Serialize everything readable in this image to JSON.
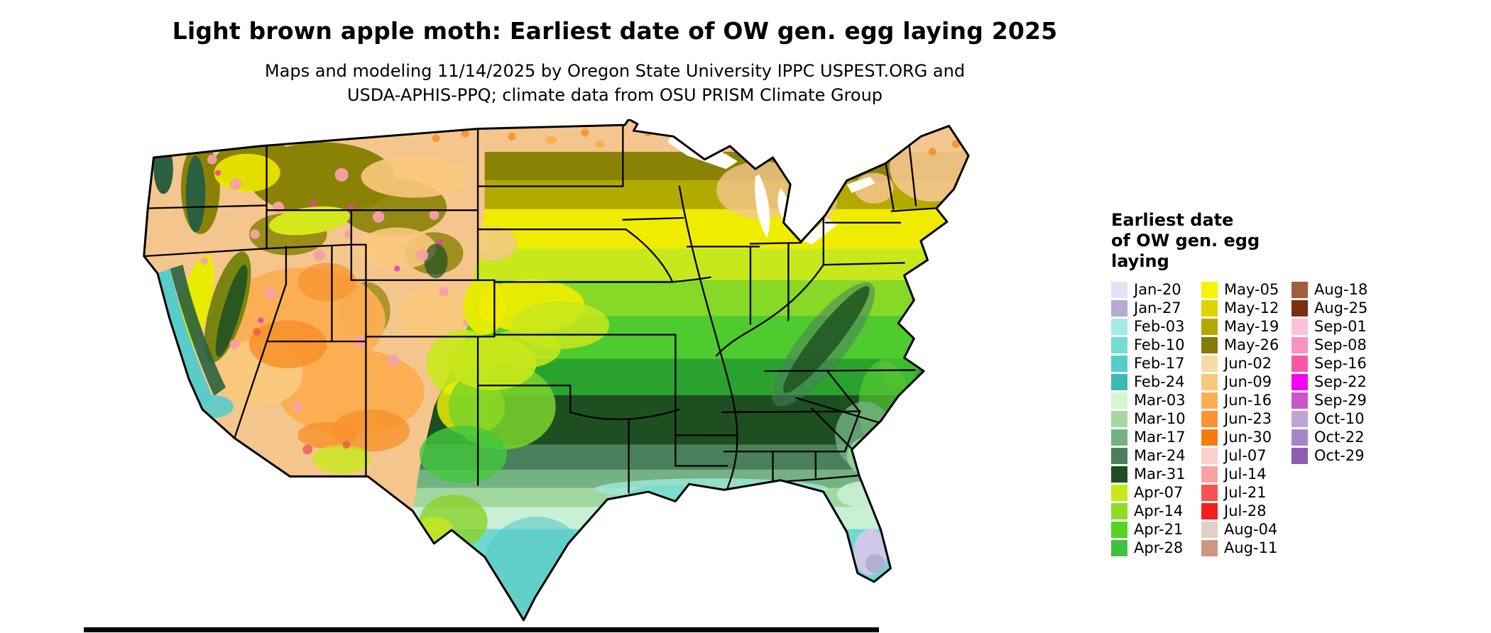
{
  "header": {
    "title": "Light brown apple moth: Earliest date of OW gen. egg laying 2025",
    "subtitle_line1": "Maps and modeling 11/14/2025 by Oregon State University IPPC USPEST.ORG and",
    "subtitle_line2": "USDA-APHIS-PPQ; climate data from OSU PRISM Climate Group"
  },
  "map": {
    "region": "Contiguous United States",
    "outline_color": "#000000",
    "background_color": "#ffffff"
  },
  "legend": {
    "title_lines": [
      "Earliest date",
      "of OW gen. egg",
      "laying"
    ],
    "columns": [
      [
        {
          "label": "Jan-20",
          "color": "#e7e1f6"
        },
        {
          "label": "Jan-27",
          "color": "#b2abd2"
        },
        {
          "label": "Feb-03",
          "color": "#a6ebe1"
        },
        {
          "label": "Feb-10",
          "color": "#76dcd3"
        },
        {
          "label": "Feb-17",
          "color": "#53cdc8"
        },
        {
          "label": "Feb-24",
          "color": "#3fb8b8"
        },
        {
          "label": "Mar-03",
          "color": "#d5f5d0"
        },
        {
          "label": "Mar-10",
          "color": "#a3d9a0"
        },
        {
          "label": "Mar-17",
          "color": "#74b284"
        },
        {
          "label": "Mar-24",
          "color": "#4a805c"
        },
        {
          "label": "Mar-31",
          "color": "#1d4f21"
        },
        {
          "label": "Apr-07",
          "color": "#c6e81c"
        },
        {
          "label": "Apr-14",
          "color": "#8edc28"
        },
        {
          "label": "Apr-21",
          "color": "#57d321"
        },
        {
          "label": "Apr-28",
          "color": "#3cc53c"
        }
      ],
      [
        {
          "label": "May-05",
          "color": "#f8f400"
        },
        {
          "label": "May-12",
          "color": "#ded400"
        },
        {
          "label": "May-19",
          "color": "#b2a900"
        },
        {
          "label": "May-26",
          "color": "#837b04"
        },
        {
          "label": "Jun-02",
          "color": "#f7daa4"
        },
        {
          "label": "Jun-09",
          "color": "#f9c87c"
        },
        {
          "label": "Jun-16",
          "color": "#fbae52"
        },
        {
          "label": "Jun-23",
          "color": "#fb9330"
        },
        {
          "label": "Jun-30",
          "color": "#f87a0e"
        },
        {
          "label": "Jul-07",
          "color": "#fbd0cc"
        },
        {
          "label": "Jul-14",
          "color": "#f9a3a3"
        },
        {
          "label": "Jul-21",
          "color": "#f75252"
        },
        {
          "label": "Jul-28",
          "color": "#f51d1d"
        },
        {
          "label": "Aug-04",
          "color": "#e3cfc4"
        },
        {
          "label": "Aug-11",
          "color": "#cf9682"
        }
      ],
      [
        {
          "label": "Aug-18",
          "color": "#a05e3e"
        },
        {
          "label": "Aug-25",
          "color": "#7c2f0e"
        },
        {
          "label": "Sep-01",
          "color": "#f8c3da"
        },
        {
          "label": "Sep-08",
          "color": "#f893c3"
        },
        {
          "label": "Sep-16",
          "color": "#f857a5"
        },
        {
          "label": "Sep-22",
          "color": "#f303f3"
        },
        {
          "label": "Sep-29",
          "color": "#c957c9"
        },
        {
          "label": "Oct-10",
          "color": "#c1a4d6"
        },
        {
          "label": "Oct-22",
          "color": "#a685c6"
        },
        {
          "label": "Oct-29",
          "color": "#8e5fb0"
        }
      ]
    ]
  }
}
